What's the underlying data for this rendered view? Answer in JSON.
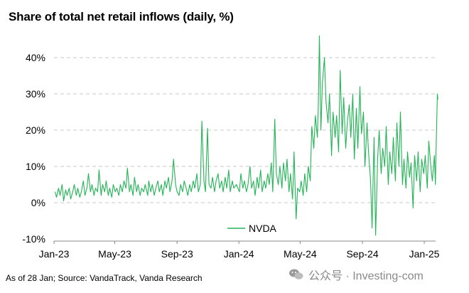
{
  "title": "Share of total net retail inflows (daily, %)",
  "source_note": "As of 28 Jan; Source: VandaTrack, Vanda Research",
  "watermark": "公众号 · Investing-com",
  "colors": {
    "line": "#22b455",
    "grid": "#c8c8c8",
    "axis": "#888888"
  },
  "chart_data": {
    "type": "line",
    "title": "Share of total net retail inflows (daily, %)",
    "xlabel": "",
    "ylabel": "",
    "ylim": [
      -10,
      45
    ],
    "yticks": [
      -10,
      0,
      10,
      20,
      30,
      40
    ],
    "ytick_labels": [
      "-10%",
      "0%",
      "10%",
      "20%",
      "30%",
      "40%"
    ],
    "xtick_labels": [
      "Jan-23",
      "May-23",
      "Sep-23",
      "Jan-24",
      "May-24",
      "Sep-24",
      "Jan-25"
    ],
    "xtick_dates": [
      "2023-01-01",
      "2023-05-01",
      "2023-09-01",
      "2024-01-01",
      "2024-05-01",
      "2024-09-01",
      "2025-01-01"
    ],
    "grid": "horizontal dashed",
    "legend": "bottom-center",
    "series": [
      {
        "name": "NVDA",
        "points": [
          [
            "2023-01-03",
            3
          ],
          [
            "2023-01-06",
            1.5
          ],
          [
            "2023-01-10",
            4
          ],
          [
            "2023-01-13",
            2
          ],
          [
            "2023-01-17",
            5
          ],
          [
            "2023-01-20",
            0.5
          ],
          [
            "2023-01-24",
            3.5
          ],
          [
            "2023-01-27",
            2
          ],
          [
            "2023-01-31",
            4
          ],
          [
            "2023-02-03",
            1
          ],
          [
            "2023-02-07",
            3
          ],
          [
            "2023-02-10",
            5
          ],
          [
            "2023-02-14",
            2
          ],
          [
            "2023-02-17",
            4
          ],
          [
            "2023-02-21",
            1.5
          ],
          [
            "2023-02-24",
            3
          ],
          [
            "2023-02-28",
            6
          ],
          [
            "2023-03-03",
            2
          ],
          [
            "2023-03-07",
            4
          ],
          [
            "2023-03-10",
            8
          ],
          [
            "2023-03-14",
            3
          ],
          [
            "2023-03-17",
            5
          ],
          [
            "2023-03-21",
            2
          ],
          [
            "2023-03-24",
            4
          ],
          [
            "2023-03-28",
            3
          ],
          [
            "2023-03-31",
            9
          ],
          [
            "2023-04-04",
            2
          ],
          [
            "2023-04-07",
            5
          ],
          [
            "2023-04-11",
            3
          ],
          [
            "2023-04-14",
            6
          ],
          [
            "2023-04-18",
            2
          ],
          [
            "2023-04-21",
            4
          ],
          [
            "2023-04-25",
            1.5
          ],
          [
            "2023-04-28",
            5
          ],
          [
            "2023-05-02",
            3
          ],
          [
            "2023-05-05",
            4
          ],
          [
            "2023-05-09",
            2
          ],
          [
            "2023-05-12",
            5
          ],
          [
            "2023-05-16",
            3
          ],
          [
            "2023-05-19",
            6
          ],
          [
            "2023-05-23",
            4
          ],
          [
            "2023-05-26",
            9.5
          ],
          [
            "2023-05-30",
            3
          ],
          [
            "2023-06-02",
            5
          ],
          [
            "2023-06-06",
            2
          ],
          [
            "2023-06-09",
            7
          ],
          [
            "2023-06-13",
            3
          ],
          [
            "2023-06-16",
            5
          ],
          [
            "2023-06-20",
            2
          ],
          [
            "2023-06-23",
            4
          ],
          [
            "2023-06-27",
            3
          ],
          [
            "2023-06-30",
            5
          ],
          [
            "2023-07-05",
            2
          ],
          [
            "2023-07-07",
            6
          ],
          [
            "2023-07-11",
            3
          ],
          [
            "2023-07-14",
            5
          ],
          [
            "2023-07-18",
            2
          ],
          [
            "2023-07-21",
            4
          ],
          [
            "2023-07-25",
            6
          ],
          [
            "2023-07-28",
            3
          ],
          [
            "2023-08-01",
            5
          ],
          [
            "2023-08-04",
            2
          ],
          [
            "2023-08-08",
            6
          ],
          [
            "2023-08-11",
            4
          ],
          [
            "2023-08-15",
            7
          ],
          [
            "2023-08-18",
            3
          ],
          [
            "2023-08-22",
            6
          ],
          [
            "2023-08-25",
            12
          ],
          [
            "2023-08-29",
            5
          ],
          [
            "2023-09-01",
            3
          ],
          [
            "2023-09-05",
            2
          ],
          [
            "2023-09-08",
            5
          ],
          [
            "2023-09-12",
            3
          ],
          [
            "2023-09-15",
            6
          ],
          [
            "2023-09-19",
            4
          ],
          [
            "2023-09-22",
            2
          ],
          [
            "2023-09-26",
            5
          ],
          [
            "2023-09-29",
            3
          ],
          [
            "2023-10-03",
            6
          ],
          [
            "2023-10-06",
            4
          ],
          [
            "2023-10-10",
            8
          ],
          [
            "2023-10-13",
            3
          ],
          [
            "2023-10-17",
            5
          ],
          [
            "2023-10-20",
            22.5
          ],
          [
            "2023-10-24",
            6
          ],
          [
            "2023-10-27",
            3
          ],
          [
            "2023-10-31",
            20.5
          ],
          [
            "2023-11-03",
            5
          ],
          [
            "2023-11-07",
            4
          ],
          [
            "2023-11-10",
            7
          ],
          [
            "2023-11-14",
            3
          ],
          [
            "2023-11-17",
            6
          ],
          [
            "2023-11-21",
            8
          ],
          [
            "2023-11-24",
            4
          ],
          [
            "2023-11-28",
            6
          ],
          [
            "2023-12-01",
            3
          ],
          [
            "2023-12-05",
            7
          ],
          [
            "2023-12-08",
            4
          ],
          [
            "2023-12-12",
            9
          ],
          [
            "2023-12-15",
            3
          ],
          [
            "2023-12-19",
            6
          ],
          [
            "2023-12-22",
            4
          ],
          [
            "2023-12-27",
            5
          ],
          [
            "2024-01-02",
            3
          ],
          [
            "2024-01-05",
            8
          ],
          [
            "2024-01-09",
            4
          ],
          [
            "2024-01-12",
            6
          ],
          [
            "2024-01-16",
            3
          ],
          [
            "2024-01-19",
            5
          ],
          [
            "2024-01-23",
            10
          ],
          [
            "2024-01-26",
            4
          ],
          [
            "2024-01-30",
            6
          ],
          [
            "2024-02-02",
            2
          ],
          [
            "2024-02-06",
            7
          ],
          [
            "2024-02-09",
            4
          ],
          [
            "2024-02-13",
            9
          ],
          [
            "2024-02-16",
            3
          ],
          [
            "2024-02-20",
            6
          ],
          [
            "2024-02-23",
            4
          ],
          [
            "2024-02-27",
            8
          ],
          [
            "2024-03-01",
            5
          ],
          [
            "2024-03-05",
            11
          ],
          [
            "2024-03-08",
            3
          ],
          [
            "2024-03-12",
            23
          ],
          [
            "2024-03-15",
            8
          ],
          [
            "2024-03-19",
            5
          ],
          [
            "2024-03-22",
            10
          ],
          [
            "2024-03-26",
            4
          ],
          [
            "2024-03-29",
            11
          ],
          [
            "2024-04-02",
            6
          ],
          [
            "2024-04-05",
            12
          ],
          [
            "2024-04-09",
            3
          ],
          [
            "2024-04-12",
            8
          ],
          [
            "2024-04-16",
            1
          ],
          [
            "2024-04-19",
            14
          ],
          [
            "2024-04-23",
            -4.5
          ],
          [
            "2024-04-26",
            4
          ],
          [
            "2024-04-30",
            3
          ],
          [
            "2024-05-03",
            6
          ],
          [
            "2024-05-07",
            2
          ],
          [
            "2024-05-10",
            8
          ],
          [
            "2024-05-14",
            3
          ],
          [
            "2024-05-17",
            10
          ],
          [
            "2024-05-21",
            6
          ],
          [
            "2024-05-24",
            21
          ],
          [
            "2024-05-28",
            15
          ],
          [
            "2024-05-31",
            24
          ],
          [
            "2024-06-04",
            18
          ],
          [
            "2024-06-06",
            27
          ],
          [
            "2024-06-08",
            46
          ],
          [
            "2024-06-11",
            20
          ],
          [
            "2024-06-14",
            33
          ],
          [
            "2024-06-18",
            40
          ],
          [
            "2024-06-21",
            28
          ],
          [
            "2024-06-25",
            22
          ],
          [
            "2024-06-28",
            30
          ],
          [
            "2024-07-02",
            13
          ],
          [
            "2024-07-05",
            25
          ],
          [
            "2024-07-09",
            18
          ],
          [
            "2024-07-12",
            24
          ],
          [
            "2024-07-16",
            14
          ],
          [
            "2024-07-19",
            36.5
          ],
          [
            "2024-07-23",
            19
          ],
          [
            "2024-07-26",
            29
          ],
          [
            "2024-07-30",
            15
          ],
          [
            "2024-08-02",
            22
          ],
          [
            "2024-08-06",
            27
          ],
          [
            "2024-08-09",
            18
          ],
          [
            "2024-08-13",
            30
          ],
          [
            "2024-08-16",
            12
          ],
          [
            "2024-08-20",
            26
          ],
          [
            "2024-08-23",
            15
          ],
          [
            "2024-08-27",
            32
          ],
          [
            "2024-08-30",
            19
          ],
          [
            "2024-09-03",
            25
          ],
          [
            "2024-09-06",
            10
          ],
          [
            "2024-09-10",
            22
          ],
          [
            "2024-09-13",
            14
          ],
          [
            "2024-09-17",
            6
          ],
          [
            "2024-09-20",
            -7
          ],
          [
            "2024-09-24",
            18
          ],
          [
            "2024-09-27",
            -9
          ],
          [
            "2024-10-01",
            12
          ],
          [
            "2024-10-04",
            20
          ],
          [
            "2024-10-08",
            8
          ],
          [
            "2024-10-11",
            15
          ],
          [
            "2024-10-15",
            10
          ],
          [
            "2024-10-18",
            21
          ],
          [
            "2024-10-22",
            5
          ],
          [
            "2024-10-25",
            14
          ],
          [
            "2024-10-29",
            8
          ],
          [
            "2024-11-01",
            18
          ],
          [
            "2024-11-05",
            6
          ],
          [
            "2024-11-08",
            22
          ],
          [
            "2024-11-12",
            10
          ],
          [
            "2024-11-15",
            25
          ],
          [
            "2024-11-19",
            5
          ],
          [
            "2024-11-22",
            12
          ],
          [
            "2024-11-26",
            4
          ],
          [
            "2024-11-29",
            14
          ],
          [
            "2024-12-03",
            7
          ],
          [
            "2024-12-06",
            11
          ],
          [
            "2024-12-10",
            -1.5
          ],
          [
            "2024-12-13",
            13
          ],
          [
            "2024-12-17",
            6
          ],
          [
            "2024-12-20",
            14
          ],
          [
            "2024-12-24",
            3
          ],
          [
            "2024-12-27",
            12
          ],
          [
            "2024-12-31",
            8
          ],
          [
            "2025-01-03",
            13
          ],
          [
            "2025-01-07",
            4
          ],
          [
            "2025-01-10",
            17
          ],
          [
            "2025-01-14",
            10
          ],
          [
            "2025-01-17",
            6
          ],
          [
            "2025-01-21",
            13
          ],
          [
            "2025-01-23",
            5
          ],
          [
            "2025-01-24",
            12
          ],
          [
            "2025-01-27",
            30
          ],
          [
            "2025-01-28",
            28.5
          ]
        ]
      }
    ]
  }
}
